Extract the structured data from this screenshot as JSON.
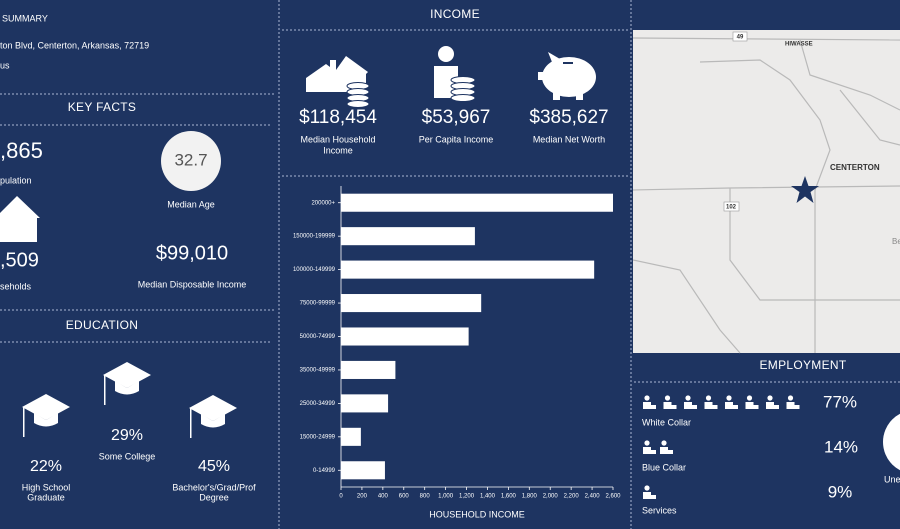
{
  "summary": {
    "title": "SUMMARY",
    "address": "ton Blvd, Centerton, Arkansas, 72719",
    "note": "us"
  },
  "key_facts": {
    "title": "KEY FACTS",
    "population": ",865",
    "population_label": "pulation",
    "households": ",509",
    "households_label": "seholds",
    "median_age": "32.7",
    "median_age_label": "Median Age",
    "median_disposable_income": "$99,010",
    "median_disposable_income_label": "Median Disposable Income"
  },
  "education": {
    "title": "EDUCATION",
    "items": [
      {
        "value": "22%",
        "label": [
          "High School",
          "Graduate"
        ]
      },
      {
        "value": "29%",
        "label": [
          "Some College"
        ]
      },
      {
        "value": "45%",
        "label": [
          "Bachelor's/Grad/Prof",
          "Degree"
        ]
      }
    ]
  },
  "income": {
    "title": "INCOME",
    "items": [
      {
        "value": "$118,454",
        "label": [
          "Median Household",
          "Income"
        ]
      },
      {
        "value": "$53,967",
        "label": [
          "Per Capita Income"
        ]
      },
      {
        "value": "$385,627",
        "label": [
          "Median Net Worth"
        ]
      }
    ]
  },
  "chart_data": {
    "type": "bar",
    "orientation": "horizontal",
    "x_label": "HOUSEHOLD INCOME",
    "categories": [
      "200000+",
      "150000-199999",
      "100000-149999",
      "75000-99999",
      "50000-74999",
      "35000-49999",
      "25000-34999",
      "15000-24999",
      "0-14999"
    ],
    "values": [
      2600,
      1280,
      2420,
      1340,
      1220,
      520,
      450,
      190,
      420
    ],
    "color": "#ffffff",
    "xlim": [
      0,
      2600
    ],
    "xticks": [
      0,
      200,
      400,
      600,
      800,
      {
        "value": 1000,
        "label": "1,000"
      },
      {
        "value": 1200,
        "label": "1,200"
      },
      {
        "value": 1400,
        "label": "1,400"
      },
      {
        "value": 1600,
        "label": "1,600"
      },
      {
        "value": 1800,
        "label": "1,800"
      },
      {
        "value": 2000,
        "label": "2,000"
      },
      {
        "value": 2200,
        "label": "2,200"
      },
      {
        "value": 2400,
        "label": "2,400"
      },
      {
        "value": 2600,
        "label": "2,600"
      }
    ]
  },
  "map": {
    "places": [
      "HIWASSE",
      "CENTERTON",
      "Be"
    ],
    "shields": [
      "49",
      "102"
    ]
  },
  "employment": {
    "title": "EMPLOYMENT",
    "items": [
      {
        "value": "77%",
        "label": "White Collar"
      },
      {
        "value": "14%",
        "label": "Blue Collar"
      },
      {
        "value": "9%",
        "label": "Services"
      }
    ],
    "unemployment_label": "Une"
  }
}
